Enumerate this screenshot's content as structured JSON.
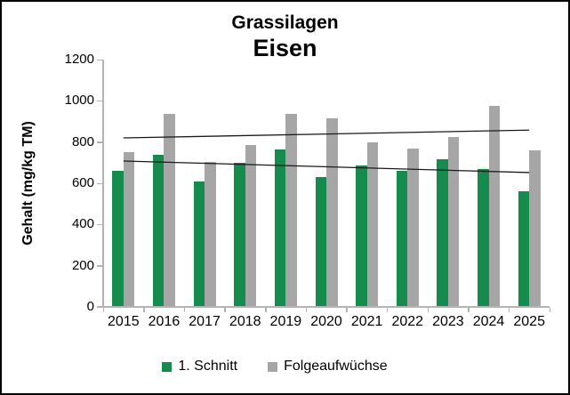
{
  "chart_data": {
    "type": "bar",
    "title": "Grassilagen",
    "subtitle": "Eisen",
    "ylabel": "Gehalt (mg/kg TM)",
    "xlabel": "",
    "ylim": [
      0,
      1200
    ],
    "ytick_step": 200,
    "grid": false,
    "legend_position": "bottom",
    "categories": [
      "2015",
      "2016",
      "2017",
      "2018",
      "2019",
      "2020",
      "2021",
      "2022",
      "2023",
      "2024",
      "2025"
    ],
    "series": [
      {
        "name": "1. Schnitt",
        "color": "#168B4E",
        "values": [
          660,
          740,
          610,
          700,
          765,
          630,
          685,
          660,
          715,
          670,
          560
        ]
      },
      {
        "name": "Folgeaufwüchse",
        "color": "#A6A6A6",
        "values": [
          750,
          935,
          705,
          785,
          935,
          915,
          800,
          770,
          825,
          975,
          760
        ]
      }
    ],
    "trendlines": [
      {
        "series": "1. Schnitt",
        "color": "#1a1a1a",
        "start_value": 708,
        "end_value": 652
      },
      {
        "series": "Folgeaufwüchse",
        "color": "#1a1a1a",
        "start_value": 820,
        "end_value": 858
      }
    ],
    "axis_color": "#b3b3b3"
  }
}
